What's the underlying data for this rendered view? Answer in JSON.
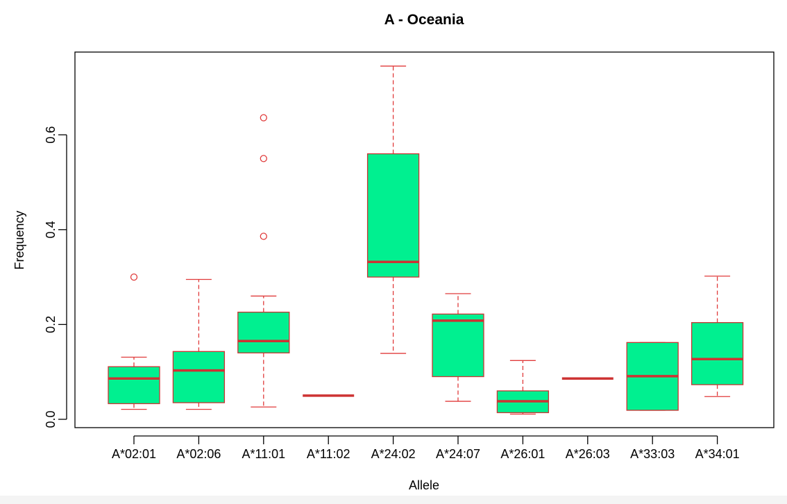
{
  "chart_data": {
    "type": "boxplot",
    "title": "A - Oceania",
    "xlabel": "Allele",
    "ylabel": "Frequency",
    "ylim": [
      -0.02,
      0.775
    ],
    "y_ticks": [
      0.0,
      0.2,
      0.4,
      0.6
    ],
    "y_tick_labels": [
      "0.0",
      "0.2",
      "0.4",
      "0.6"
    ],
    "categories": [
      "A*02:01",
      "A*02:06",
      "A*11:01",
      "A*11:02",
      "A*24:02",
      "A*24:07",
      "A*26:01",
      "A*26:03",
      "A*33:03",
      "A*34:01"
    ],
    "boxes": [
      {
        "category": "A*02:01",
        "whisker_low": 0.021,
        "q1": 0.033,
        "median": 0.086,
        "q3": 0.111,
        "whisker_high": 0.131,
        "outliers": [
          0.3
        ]
      },
      {
        "category": "A*02:06",
        "whisker_low": 0.021,
        "q1": 0.035,
        "median": 0.103,
        "q3": 0.143,
        "whisker_high": 0.295,
        "outliers": []
      },
      {
        "category": "A*11:01",
        "whisker_low": 0.026,
        "q1": 0.14,
        "median": 0.165,
        "q3": 0.226,
        "whisker_high": 0.26,
        "outliers": [
          0.386,
          0.55,
          0.636
        ]
      },
      {
        "category": "A*11:02",
        "whisker_low": 0.05,
        "q1": 0.05,
        "median": 0.05,
        "q3": 0.05,
        "whisker_high": 0.05,
        "outliers": []
      },
      {
        "category": "A*24:02",
        "whisker_low": 0.139,
        "q1": 0.3,
        "median": 0.332,
        "q3": 0.56,
        "whisker_high": 0.745,
        "outliers": []
      },
      {
        "category": "A*24:07",
        "whisker_low": 0.038,
        "q1": 0.09,
        "median": 0.208,
        "q3": 0.222,
        "whisker_high": 0.265,
        "outliers": []
      },
      {
        "category": "A*26:01",
        "whisker_low": 0.011,
        "q1": 0.014,
        "median": 0.038,
        "q3": 0.06,
        "whisker_high": 0.124,
        "outliers": []
      },
      {
        "category": "A*26:03",
        "whisker_low": 0.086,
        "q1": 0.086,
        "median": 0.086,
        "q3": 0.086,
        "whisker_high": 0.086,
        "outliers": []
      },
      {
        "category": "A*33:03",
        "whisker_low": 0.019,
        "q1": 0.019,
        "median": 0.091,
        "q3": 0.162,
        "whisker_high": 0.162,
        "outliers": []
      },
      {
        "category": "A*34:01",
        "whisker_low": 0.048,
        "q1": 0.073,
        "median": 0.127,
        "q3": 0.204,
        "whisker_high": 0.302,
        "outliers": []
      }
    ],
    "colors": {
      "box_fill": "#00f090",
      "box_border": "#cd3333",
      "median": "#cd3333",
      "whisker": "#e03a3a",
      "outlier": "#e03a3a"
    },
    "grid": false,
    "legend": "none"
  }
}
